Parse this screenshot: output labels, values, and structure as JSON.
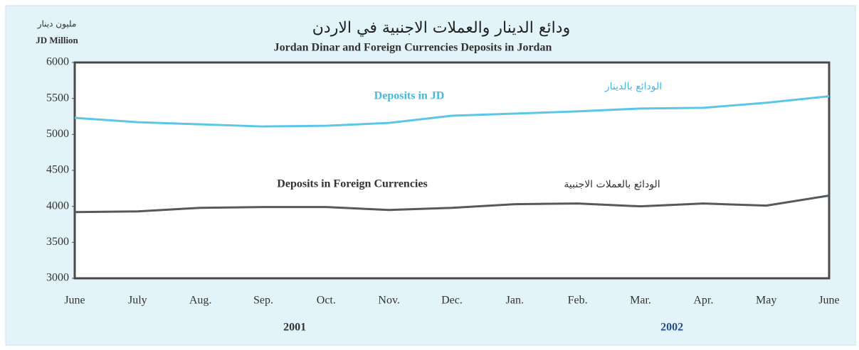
{
  "chart_data": {
    "type": "line",
    "title": "ودائع الدينار والعملات الاجنبية في الاردن",
    "subtitle": "Jordan Dinar and Foreign Currencies Deposits in Jordan",
    "y_label_ar": "مليون دينار",
    "y_label": "JD Million",
    "categories": [
      "June",
      "July",
      "Aug.",
      "Sep.",
      "Oct.",
      "Nov.",
      "Dec.",
      "Jan.",
      "Feb.",
      "Mar.",
      "Apr.",
      "May",
      "June"
    ],
    "years": [
      "2001",
      "2002"
    ],
    "series": [
      {
        "name": "Deposits in JD",
        "name_ar": "الودائع بالدينار",
        "color": "#5cc6e8",
        "values": [
          5230,
          5170,
          5140,
          5110,
          5120,
          5160,
          5260,
          5290,
          5320,
          5360,
          5370,
          5440,
          5530
        ]
      },
      {
        "name": "Deposits in Foreign Currencies",
        "name_ar": "الودائع بالعملات الاجنبية",
        "color": "#55595d",
        "values": [
          3920,
          3930,
          3980,
          3990,
          3990,
          3950,
          3980,
          4030,
          4040,
          4000,
          4040,
          4010,
          4150
        ]
      }
    ],
    "ylim": [
      3000,
      6000
    ],
    "yticks": [
      3000,
      3500,
      4000,
      4500,
      5000,
      5500,
      6000
    ],
    "grid": false
  }
}
